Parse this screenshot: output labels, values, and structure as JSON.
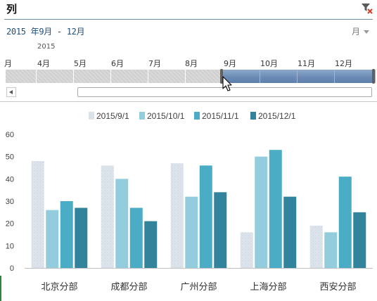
{
  "slicer": {
    "title": "列",
    "range_label": "2015 年9月 - 12月",
    "level": "月",
    "year": "2015",
    "months": [
      "月",
      "4月",
      "5月",
      "6月",
      "7月",
      "8月",
      "9月",
      "10月",
      "11月",
      "12月"
    ],
    "selected_from": "9月",
    "selected_to": "12月",
    "icons": {
      "clear_filter": "funnel-clear-icon",
      "level_dropdown": "chevron-down-icon",
      "scroll_left": "arrow-left-icon",
      "pointer": "mouse-pointer-icon"
    },
    "colors": {
      "selection": "#6c8cb6",
      "title_rule": "#6c8fa8"
    }
  },
  "chart_data": {
    "type": "bar",
    "categories": [
      "北京分部",
      "成都分部",
      "广州分部",
      "上海分部",
      "西安分部"
    ],
    "series": [
      {
        "name": "2015/9/1",
        "color": "#dde4ec",
        "values": [
          48,
          46,
          47,
          16,
          19
        ]
      },
      {
        "name": "2015/10/1",
        "color": "#93cddd",
        "values": [
          26,
          40,
          32,
          50,
          16
        ]
      },
      {
        "name": "2015/11/1",
        "color": "#4bacc6",
        "values": [
          30,
          27,
          46,
          53,
          41
        ]
      },
      {
        "name": "2015/12/1",
        "color": "#31849b",
        "values": [
          27,
          21,
          34,
          32,
          25
        ]
      }
    ],
    "ylim": [
      0,
      60
    ],
    "yticks": [
      "0",
      "10",
      "20",
      "30",
      "40",
      "50",
      "60"
    ],
    "grid": false,
    "legend": "top"
  }
}
